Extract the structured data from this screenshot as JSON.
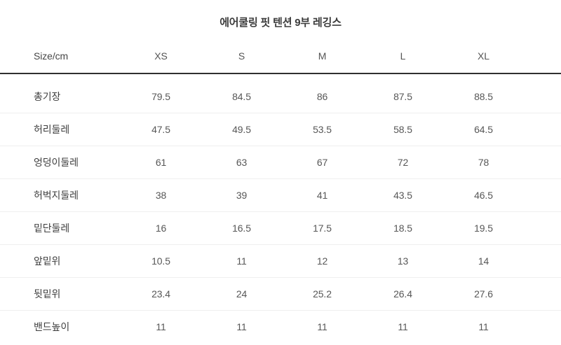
{
  "page": {
    "title": "에어쿨링 핏 텐션 9부 레깅스"
  },
  "table": {
    "header": {
      "label": "Size/cm",
      "sizes": [
        "XS",
        "S",
        "M",
        "L",
        "XL"
      ]
    },
    "rows": [
      {
        "label": "총기장",
        "values": [
          "79.5",
          "84.5",
          "86",
          "87.5",
          "88.5"
        ]
      },
      {
        "label": "허리둘레",
        "values": [
          "47.5",
          "49.5",
          "53.5",
          "58.5",
          "64.5"
        ]
      },
      {
        "label": "엉덩이둘레",
        "values": [
          "61",
          "63",
          "67",
          "72",
          "78"
        ]
      },
      {
        "label": "허벅지둘레",
        "values": [
          "38",
          "39",
          "41",
          "43.5",
          "46.5"
        ]
      },
      {
        "label": "밑단둘레",
        "values": [
          "16",
          "16.5",
          "17.5",
          "18.5",
          "19.5"
        ]
      },
      {
        "label": "앞밑위",
        "values": [
          "10.5",
          "11",
          "12",
          "13",
          "14"
        ]
      },
      {
        "label": "뒷밑위",
        "values": [
          "23.4",
          "24",
          "25.2",
          "26.4",
          "27.6"
        ]
      },
      {
        "label": "밴드높이",
        "values": [
          "11",
          "11",
          "11",
          "11",
          "11"
        ]
      }
    ]
  },
  "chart_data": {
    "type": "table",
    "title": "에어쿨링 핏 텐션 9부 레깅스",
    "columns": [
      "Size/cm",
      "XS",
      "S",
      "M",
      "L",
      "XL"
    ],
    "rows": [
      [
        "총기장",
        79.5,
        84.5,
        86,
        87.5,
        88.5
      ],
      [
        "허리둘레",
        47.5,
        49.5,
        53.5,
        58.5,
        64.5
      ],
      [
        "엉덩이둘레",
        61,
        63,
        67,
        72,
        78
      ],
      [
        "허벅지둘레",
        38,
        39,
        41,
        43.5,
        46.5
      ],
      [
        "밑단둘레",
        16,
        16.5,
        17.5,
        18.5,
        19.5
      ],
      [
        "앞밑위",
        10.5,
        11,
        12,
        13,
        14
      ],
      [
        "뒷밑위",
        23.4,
        24,
        25.2,
        26.4,
        27.6
      ],
      [
        "밴드높이",
        11,
        11,
        11,
        11,
        11
      ]
    ],
    "unit": "cm"
  },
  "colors": {
    "background": "#ffffff",
    "title_text": "#3b3b3b",
    "label_text": "#3f3f3f",
    "value_text": "#575757",
    "header_rule": "#2f2f2f",
    "row_divider": "#efefef"
  }
}
